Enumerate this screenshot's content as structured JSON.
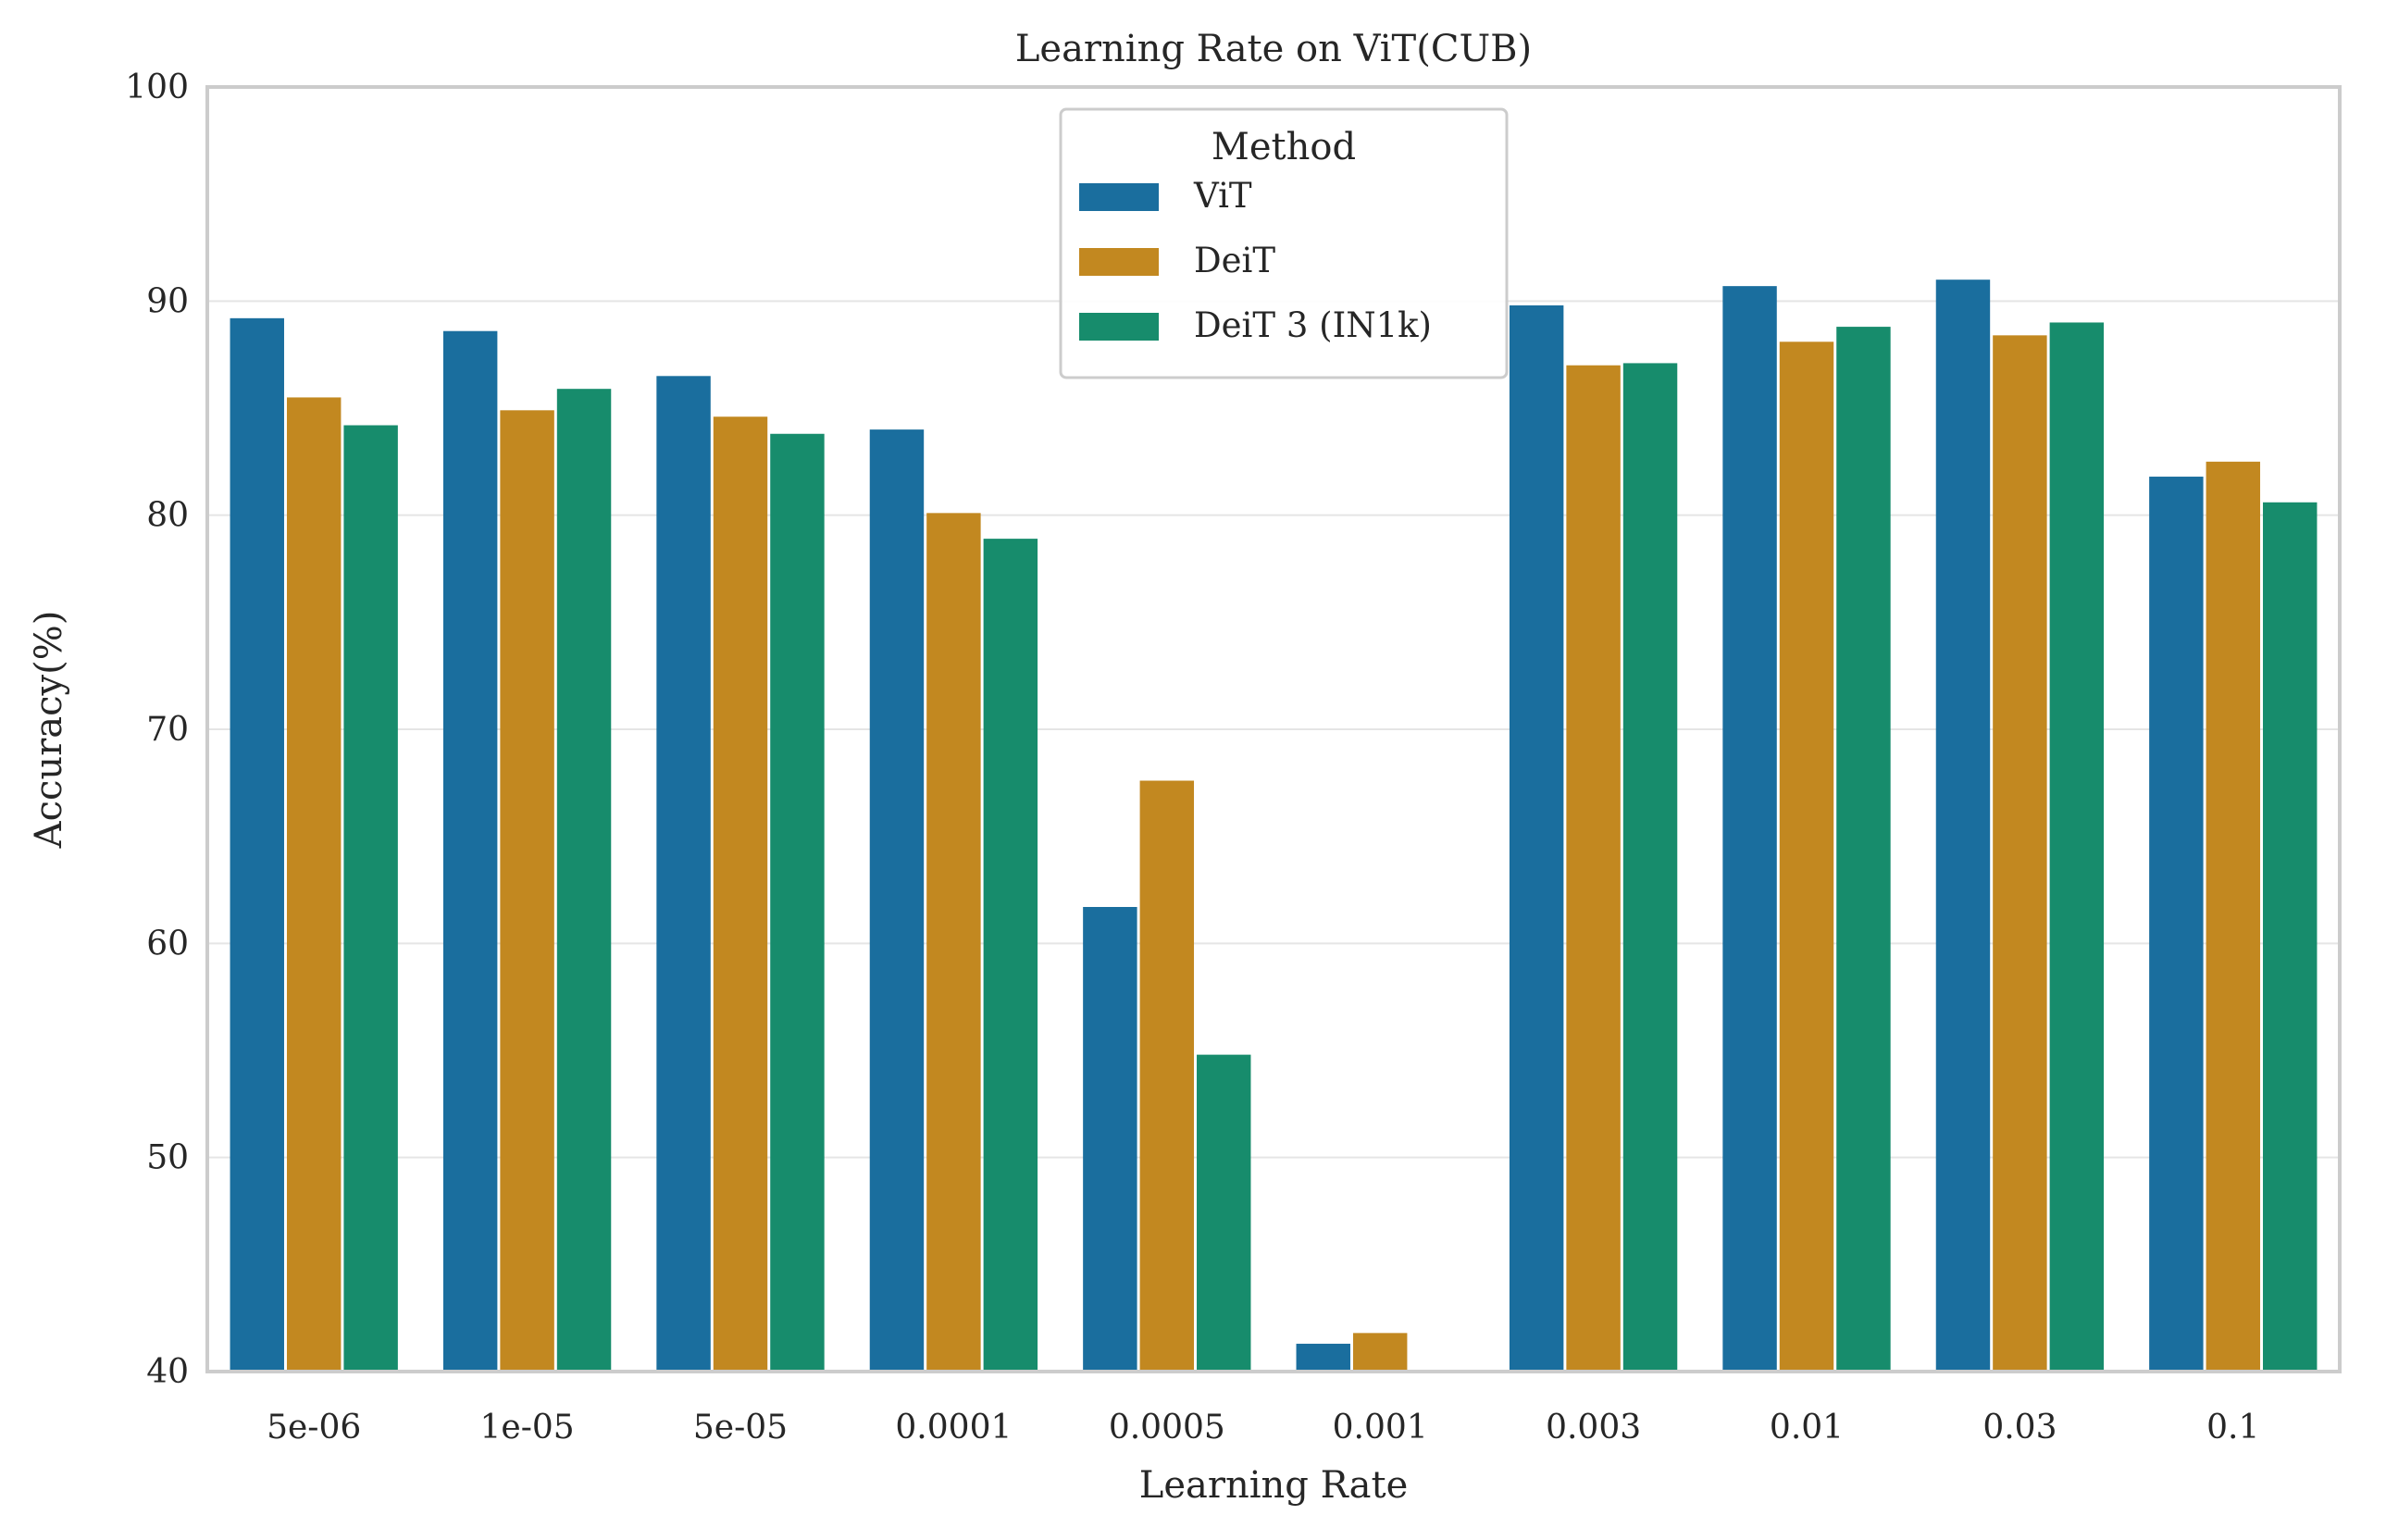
{
  "chart_data": {
    "type": "bar",
    "title": "Learning Rate on ViT(CUB)",
    "xlabel": "Learning Rate",
    "ylabel": "Accuracy(%)",
    "ylim": [
      40,
      100
    ],
    "yticks": [
      "40",
      "50",
      "60",
      "70",
      "80",
      "90",
      "100"
    ],
    "grid": "horizontal",
    "categories": [
      "5e-06",
      "1e-05",
      "5e-05",
      "0.0001",
      "0.0005",
      "0.001",
      "0.003",
      "0.01",
      "0.03",
      "0.1"
    ],
    "legend": {
      "title": "Method",
      "placement": "top-center"
    },
    "series": [
      {
        "name": "ViT",
        "color": "#1a6e9e",
        "values": [
          89.2,
          88.6,
          86.5,
          84.0,
          61.7,
          41.3,
          89.8,
          90.7,
          91.0,
          81.8
        ]
      },
      {
        "name": "DeiT",
        "color": "#c28820",
        "values": [
          85.5,
          84.9,
          84.6,
          80.1,
          67.6,
          41.8,
          87.0,
          88.1,
          88.4,
          82.5
        ]
      },
      {
        "name": "DeiT 3 (IN1k)",
        "color": "#178c6c",
        "values": [
          84.2,
          85.9,
          83.8,
          78.9,
          54.8,
          null,
          87.1,
          88.8,
          89.0,
          80.6
        ]
      }
    ]
  }
}
